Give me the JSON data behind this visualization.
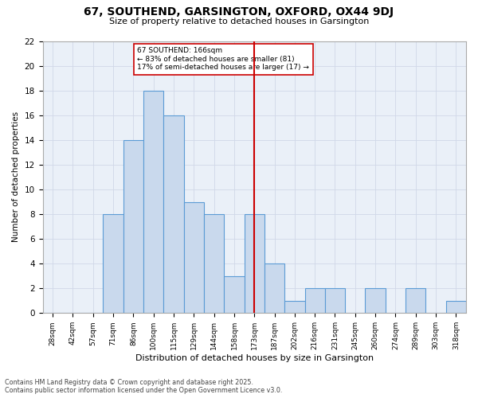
{
  "title": "67, SOUTHEND, GARSINGTON, OXFORD, OX44 9DJ",
  "subtitle": "Size of property relative to detached houses in Garsington",
  "xlabel": "Distribution of detached houses by size in Garsington",
  "ylabel": "Number of detached properties",
  "categories": [
    "28sqm",
    "42sqm",
    "57sqm",
    "71sqm",
    "86sqm",
    "100sqm",
    "115sqm",
    "129sqm",
    "144sqm",
    "158sqm",
    "173sqm",
    "187sqm",
    "202sqm",
    "216sqm",
    "231sqm",
    "245sqm",
    "260sqm",
    "274sqm",
    "289sqm",
    "303sqm",
    "318sqm"
  ],
  "values": [
    0,
    0,
    0,
    8,
    14,
    18,
    16,
    9,
    8,
    3,
    8,
    4,
    1,
    2,
    2,
    0,
    2,
    0,
    2,
    0,
    1
  ],
  "bar_color": "#c9d9ed",
  "bar_edge_color": "#5b9bd5",
  "red_line_index": 10,
  "annotation_text": "67 SOUTHEND: 166sqm\n← 83% of detached houses are smaller (81)\n17% of semi-detached houses are larger (17) →",
  "annotation_box_color": "#ffffff",
  "annotation_box_edge_color": "#cc0000",
  "annotation_text_color": "#000000",
  "red_line_color": "#cc0000",
  "grid_color": "#d0d8e8",
  "background_color": "#eaf0f8",
  "ylim": [
    0,
    22
  ],
  "yticks": [
    0,
    2,
    4,
    6,
    8,
    10,
    12,
    14,
    16,
    18,
    20,
    22
  ],
  "footer_line1": "Contains HM Land Registry data © Crown copyright and database right 2025.",
  "footer_line2": "Contains public sector information licensed under the Open Government Licence v3.0."
}
